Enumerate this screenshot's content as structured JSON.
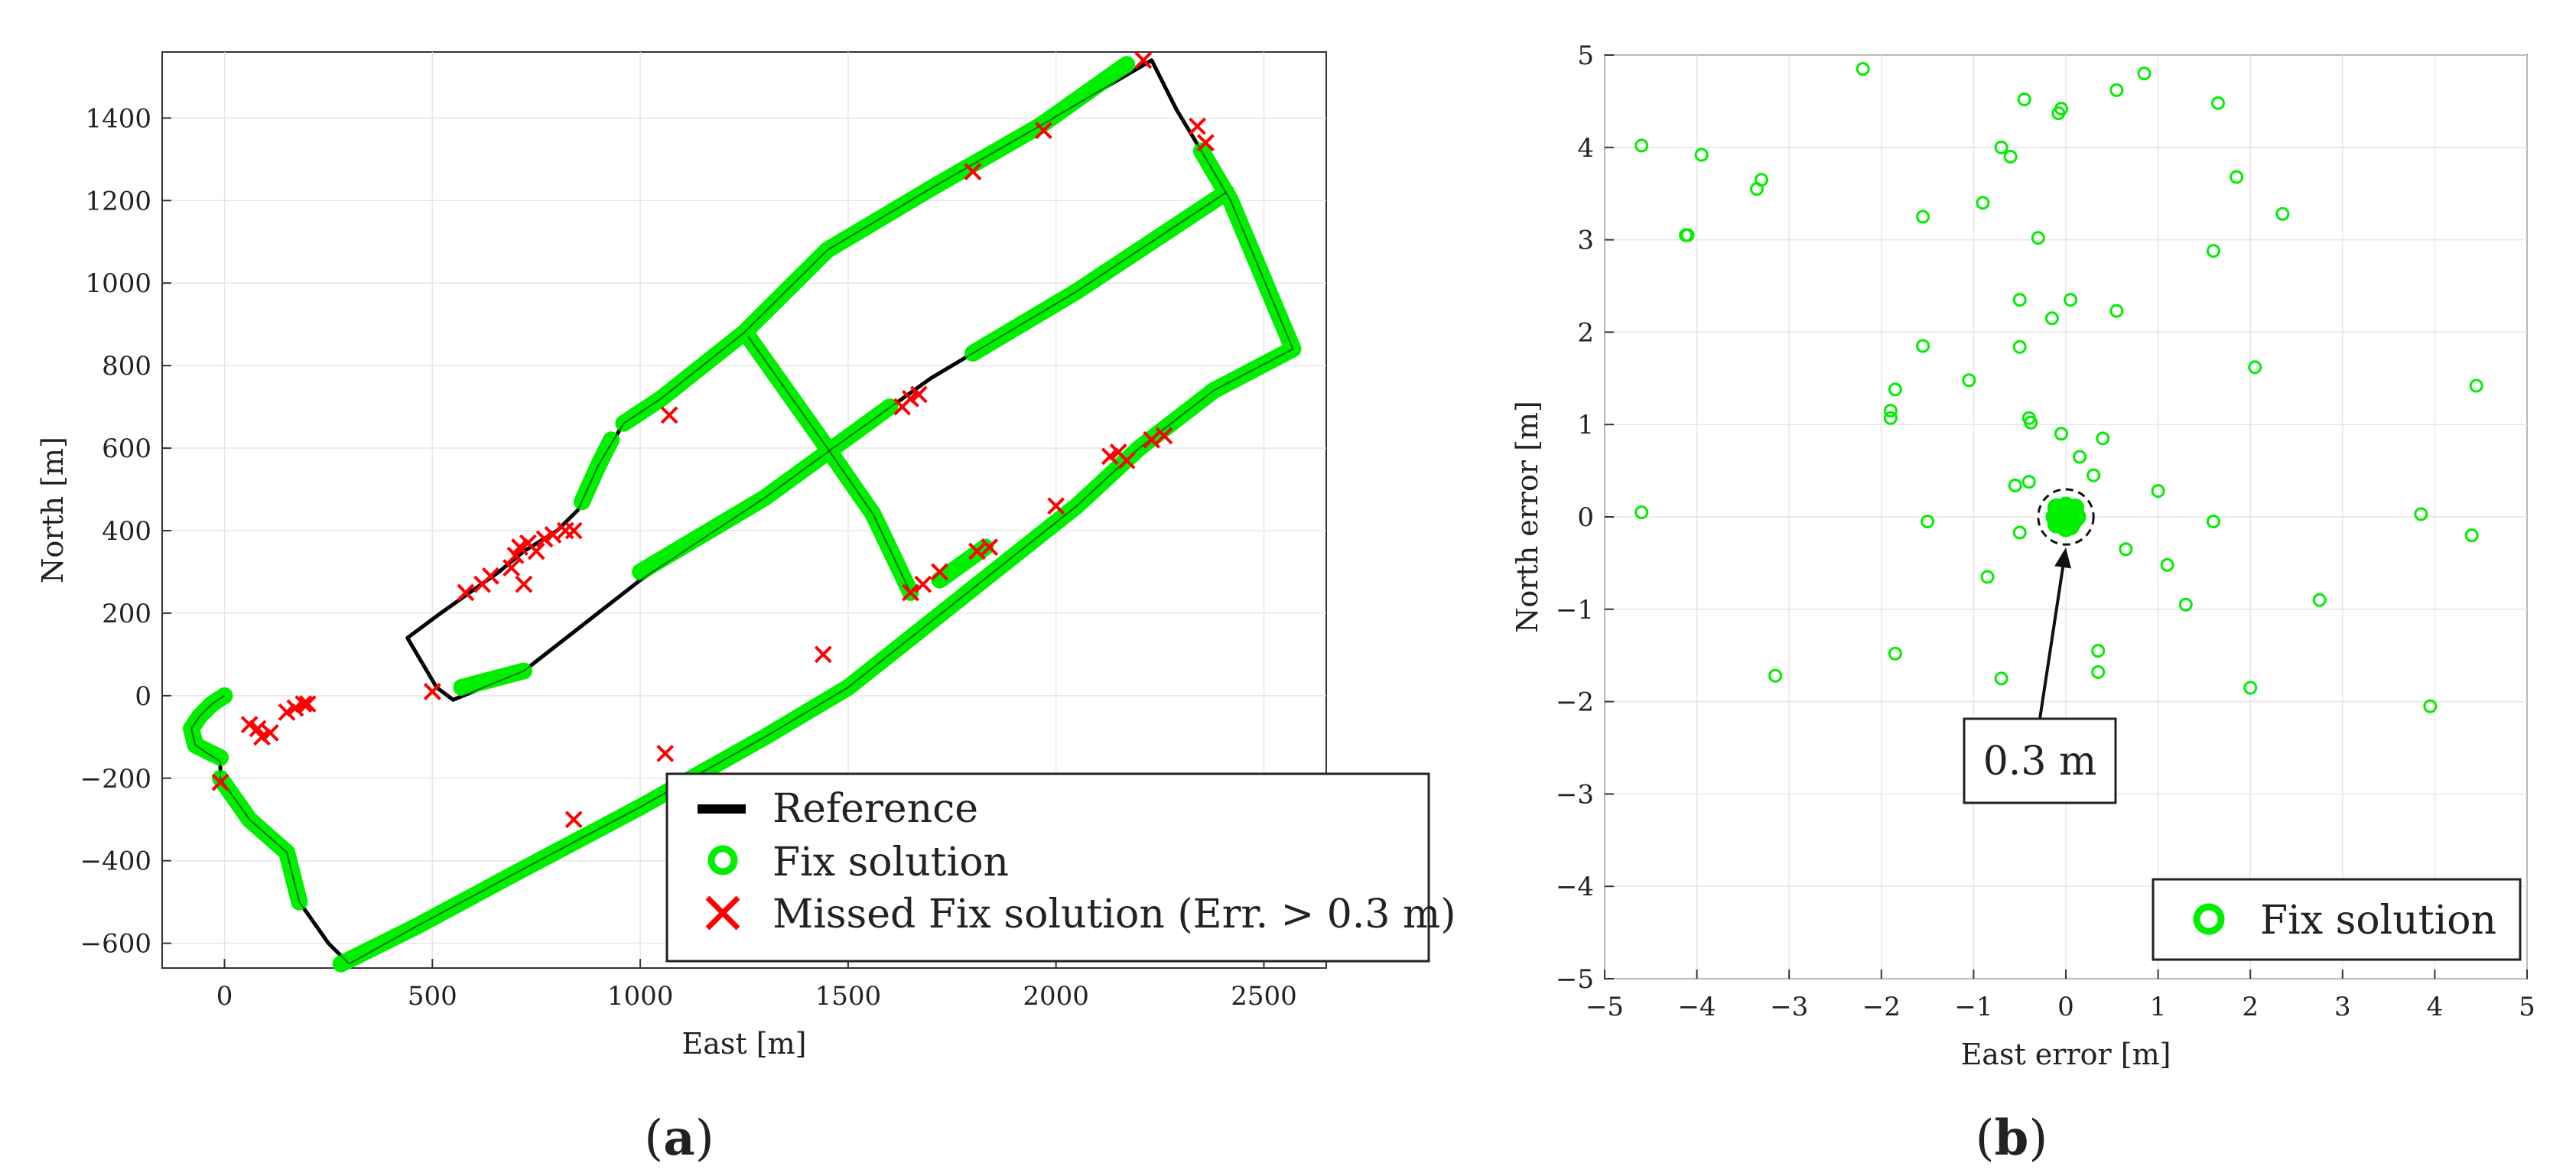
{
  "chart_data": [
    {
      "type": "line",
      "panel_label": "(a)",
      "panel_letter": "a",
      "xlabel": "East [m]",
      "ylabel": "North [m]",
      "xlim": [
        -150,
        2650
      ],
      "ylim": [
        -660,
        1560
      ],
      "xticks": [
        0,
        500,
        1000,
        1500,
        2000,
        2500
      ],
      "yticks": [
        -600,
        -400,
        -200,
        0,
        200,
        400,
        600,
        800,
        1000,
        1200,
        1400
      ],
      "legend": {
        "position": "bottom-right",
        "entries": [
          "Reference",
          "Fix solution",
          "Missed Fix solution (Err. > 0.3 m)"
        ]
      },
      "series": [
        {
          "name": "Reference",
          "color": "#000000",
          "paths": [
            [
              [
                0,
                0
              ],
              [
                -30,
                -20
              ],
              [
                -60,
                -50
              ],
              [
                -80,
                -80
              ],
              [
                -70,
                -120
              ],
              [
                -10,
                -160
              ],
              [
                -10,
                -200
              ],
              [
                60,
                -300
              ],
              [
                150,
                -380
              ],
              [
                180,
                -500
              ],
              [
                250,
                -600
              ],
              [
                300,
                -650
              ],
              [
                460,
                -560
              ],
              [
                700,
                -430
              ],
              [
                1000,
                -270
              ],
              [
                1300,
                -100
              ],
              [
                1500,
                20
              ],
              [
                1700,
                180
              ],
              [
                1900,
                340
              ],
              [
                2050,
                460
              ],
              [
                2200,
                600
              ],
              [
                2380,
                740
              ],
              [
                2570,
                840
              ],
              [
                2420,
                1200
              ],
              [
                2350,
                1320
              ],
              [
                2290,
                1420
              ],
              [
                2230,
                1540
              ],
              [
                1960,
                1380
              ],
              [
                1700,
                1230
              ],
              [
                1450,
                1080
              ],
              [
                1250,
                880
              ],
              [
                1050,
                720
              ],
              [
                960,
                660
              ],
              [
                900,
                560
              ],
              [
                850,
                450
              ],
              [
                800,
                400
              ],
              [
                720,
                350
              ],
              [
                660,
                300
              ],
              [
                520,
                200
              ],
              [
                440,
                140
              ],
              [
                510,
                20
              ],
              [
                550,
                -10
              ],
              [
                720,
                60
              ],
              [
                1000,
                280
              ],
              [
                1300,
                480
              ],
              [
                1450,
                590
              ],
              [
                1700,
                770
              ],
              [
                2050,
                980
              ],
              [
                2410,
                1220
              ]
            ],
            [
              [
                1260,
                870
              ],
              [
                1450,
                600
              ],
              [
                1560,
                440
              ],
              [
                1650,
                250
              ]
            ]
          ]
        },
        {
          "name": "Fix solution",
          "color": "#00ee00",
          "paths": [
            [
              [
                0,
                0
              ],
              [
                -30,
                -20
              ],
              [
                -60,
                -50
              ],
              [
                -80,
                -80
              ],
              [
                -70,
                -120
              ],
              [
                -10,
                -150
              ]
            ],
            [
              [
                -10,
                -200
              ],
              [
                60,
                -300
              ],
              [
                150,
                -380
              ],
              [
                180,
                -500
              ]
            ],
            [
              [
                280,
                -650
              ],
              [
                460,
                -560
              ],
              [
                700,
                -430
              ],
              [
                1000,
                -270
              ],
              [
                1300,
                -100
              ],
              [
                1500,
                20
              ],
              [
                1700,
                180
              ],
              [
                1900,
                340
              ],
              [
                2050,
                460
              ],
              [
                2200,
                600
              ],
              [
                2380,
                740
              ],
              [
                2570,
                840
              ],
              [
                2420,
                1200
              ],
              [
                2350,
                1320
              ]
            ],
            [
              [
                2170,
                1530
              ],
              [
                1960,
                1380
              ],
              [
                1700,
                1230
              ],
              [
                1450,
                1080
              ],
              [
                1250,
                880
              ],
              [
                1050,
                720
              ],
              [
                960,
                660
              ]
            ],
            [
              [
                930,
                620
              ],
              [
                900,
                560
              ],
              [
                860,
                470
              ]
            ],
            [
              [
                570,
                20
              ],
              [
                720,
                60
              ]
            ],
            [
              [
                1000,
                300
              ],
              [
                1300,
                480
              ],
              [
                1450,
                590
              ],
              [
                1600,
                700
              ]
            ],
            [
              [
                1800,
                830
              ],
              [
                2050,
                980
              ],
              [
                2410,
                1220
              ]
            ],
            [
              [
                1260,
                870
              ],
              [
                1450,
                600
              ],
              [
                1560,
                440
              ],
              [
                1650,
                250
              ]
            ],
            [
              [
                1720,
                280
              ],
              [
                1830,
                360
              ]
            ]
          ]
        },
        {
          "name": "Missed Fix solution (Err. > 0.3 m)",
          "color": "#ff0000",
          "points": [
            [
              60,
              -70
            ],
            [
              80,
              -80
            ],
            [
              90,
              -100
            ],
            [
              110,
              -90
            ],
            [
              150,
              -40
            ],
            [
              170,
              -30
            ],
            [
              190,
              -20
            ],
            [
              200,
              -20
            ],
            [
              -10,
              -210
            ],
            [
              500,
              10
            ],
            [
              580,
              250
            ],
            [
              620,
              270
            ],
            [
              640,
              290
            ],
            [
              690,
              310
            ],
            [
              700,
              340
            ],
            [
              710,
              360
            ],
            [
              730,
              370
            ],
            [
              750,
              350
            ],
            [
              770,
              380
            ],
            [
              790,
              390
            ],
            [
              820,
              400
            ],
            [
              840,
              400
            ],
            [
              720,
              270
            ],
            [
              1070,
              680
            ],
            [
              1650,
              720
            ],
            [
              1670,
              730
            ],
            [
              1630,
              700
            ],
            [
              1650,
              250
            ],
            [
              1680,
              270
            ],
            [
              1720,
              300
            ],
            [
              1810,
              350
            ],
            [
              1840,
              360
            ],
            [
              2000,
              460
            ],
            [
              2130,
              580
            ],
            [
              2150,
              590
            ],
            [
              2170,
              570
            ],
            [
              2230,
              620
            ],
            [
              2260,
              630
            ],
            [
              2210,
              1540
            ],
            [
              2340,
              1380
            ],
            [
              2360,
              1340
            ],
            [
              1800,
              1270
            ],
            [
              1970,
              1370
            ],
            [
              1440,
              100
            ],
            [
              1060,
              -140
            ],
            [
              840,
              -300
            ]
          ]
        }
      ]
    },
    {
      "type": "scatter",
      "panel_label": "(b)",
      "panel_letter": "b",
      "xlabel": "East error [m]",
      "ylabel": "North error [m]",
      "xlim": [
        -5,
        5
      ],
      "ylim": [
        -5,
        5
      ],
      "xticks": [
        -5,
        -4,
        -3,
        -2,
        -1,
        0,
        1,
        2,
        3,
        4,
        5
      ],
      "yticks": [
        -5,
        -4,
        -3,
        -2,
        -1,
        0,
        1,
        2,
        3,
        4,
        5
      ],
      "annotation": {
        "text": "0.3 m",
        "circle_radius": 0.3,
        "points_to": [
          0,
          0
        ]
      },
      "legend": {
        "position": "bottom-right",
        "entries": [
          "Fix solution"
        ]
      },
      "series": [
        {
          "name": "Fix solution",
          "color": "#00ee00",
          "cluster": [
            [
              0,
              0
            ],
            [
              0.1,
              0.05
            ],
            [
              -0.1,
              0.1
            ],
            [
              0.05,
              -0.1
            ],
            [
              -0.05,
              -0.05
            ],
            [
              0.1,
              0.1
            ],
            [
              -0.1,
              -0.08
            ],
            [
              0.08,
              -0.05
            ],
            [
              0,
              0.12
            ],
            [
              -0.12,
              0
            ],
            [
              0.12,
              0
            ],
            [
              0,
              -0.12
            ]
          ],
          "points": [
            [
              -2.2,
              4.85
            ],
            [
              0.85,
              4.8
            ],
            [
              0.55,
              4.62
            ],
            [
              -0.45,
              4.52
            ],
            [
              1.65,
              4.48
            ],
            [
              -0.05,
              4.42
            ],
            [
              -0.08,
              4.37
            ],
            [
              -4.6,
              4.02
            ],
            [
              -3.95,
              3.92
            ],
            [
              -0.7,
              4.0
            ],
            [
              -0.6,
              3.9
            ],
            [
              -3.3,
              3.65
            ],
            [
              -3.35,
              3.55
            ],
            [
              1.85,
              3.68
            ],
            [
              -0.9,
              3.4
            ],
            [
              -1.55,
              3.25
            ],
            [
              2.35,
              3.28
            ],
            [
              -4.1,
              3.05
            ],
            [
              -4.12,
              3.05
            ],
            [
              -0.3,
              3.02
            ],
            [
              1.6,
              2.88
            ],
            [
              -0.5,
              2.35
            ],
            [
              0.05,
              2.35
            ],
            [
              0.55,
              2.23
            ],
            [
              -0.15,
              2.15
            ],
            [
              -1.55,
              1.85
            ],
            [
              -0.5,
              1.84
            ],
            [
              2.05,
              1.62
            ],
            [
              -1.05,
              1.48
            ],
            [
              4.45,
              1.42
            ],
            [
              -1.85,
              1.38
            ],
            [
              -1.9,
              1.15
            ],
            [
              -1.9,
              1.07
            ],
            [
              -0.4,
              1.07
            ],
            [
              -0.38,
              1.02
            ],
            [
              -0.05,
              0.9
            ],
            [
              0.4,
              0.85
            ],
            [
              0.15,
              0.65
            ],
            [
              0.3,
              0.45
            ],
            [
              -0.4,
              0.38
            ],
            [
              -0.55,
              0.34
            ],
            [
              1.0,
              0.28
            ],
            [
              -4.6,
              0.05
            ],
            [
              3.85,
              0.03
            ],
            [
              -1.5,
              -0.05
            ],
            [
              1.6,
              -0.05
            ],
            [
              -0.5,
              -0.17
            ],
            [
              4.4,
              -0.2
            ],
            [
              0.65,
              -0.35
            ],
            [
              1.1,
              -0.52
            ],
            [
              -0.85,
              -0.65
            ],
            [
              2.75,
              -0.9
            ],
            [
              1.3,
              -0.95
            ],
            [
              -1.85,
              -1.48
            ],
            [
              0.35,
              -1.45
            ],
            [
              -3.15,
              -1.72
            ],
            [
              -0.7,
              -1.75
            ],
            [
              0.35,
              -1.68
            ],
            [
              2.0,
              -1.85
            ],
            [
              3.95,
              -2.05
            ]
          ]
        }
      ]
    }
  ]
}
